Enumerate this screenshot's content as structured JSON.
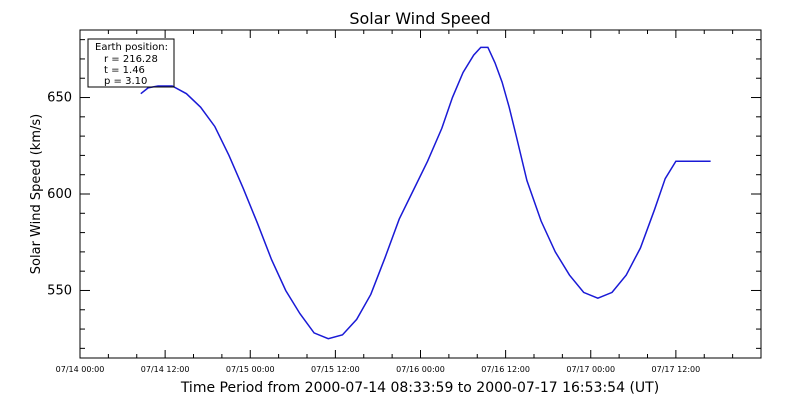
{
  "chart_data": {
    "type": "line",
    "title": "Solar Wind Speed",
    "xlabel": "Time Period from 2000-07-14 08:33:59 to 2000-07-17 16:53:54 (UT)",
    "ylabel": "Solar Wind Speed (km/s)",
    "x_tick_labels": [
      "07/14 00:00",
      "07/14 12:00",
      "07/15 00:00",
      "07/15 12:00",
      "07/16 00:00",
      "07/16 12:00",
      "07/17 00:00",
      "07/17 12:00"
    ],
    "x_tick_hours": [
      0,
      12,
      24,
      36,
      48,
      60,
      72,
      84
    ],
    "xlim_hours": [
      0,
      96
    ],
    "y_ticks": [
      550,
      600,
      650
    ],
    "ylim": [
      515,
      685
    ],
    "grid": false,
    "line_color": "#1a1ad6",
    "legend": {
      "placement": "top-left",
      "title": "Earth position:",
      "lines": [
        "r = 216.28",
        "t = 1.46",
        "p = 3.10"
      ]
    },
    "series": [
      {
        "x_hours": [
          8.57,
          9.6,
          11.0,
          13.0,
          15.0,
          17.0,
          19.0,
          21.0,
          23.0,
          25.0,
          27.0,
          29.0,
          31.0,
          33.0,
          35.0,
          37.0,
          39.0,
          41.0,
          43.0,
          45.0,
          47.0,
          49.0,
          51.0,
          52.5,
          54.0,
          55.5,
          56.5,
          57.5,
          58.5,
          59.5,
          60.5,
          61.5,
          63.0,
          65.0,
          67.0,
          69.0,
          71.0,
          73.0,
          75.0,
          77.0,
          79.0,
          81.0,
          82.5,
          84.0,
          85.5,
          86.5,
          87.5,
          88.0,
          88.9
        ],
        "values": [
          652,
          655,
          656,
          656,
          652,
          645,
          635,
          620,
          603,
          585,
          566,
          550,
          538,
          528,
          525,
          527,
          535,
          548,
          567,
          587,
          602,
          617,
          634,
          650,
          663,
          672,
          676,
          676,
          668,
          658,
          645,
          630,
          607,
          586,
          570,
          558,
          549,
          546,
          549,
          558,
          572,
          592,
          608,
          617,
          617,
          617,
          617,
          617,
          617
        ]
      }
    ]
  }
}
